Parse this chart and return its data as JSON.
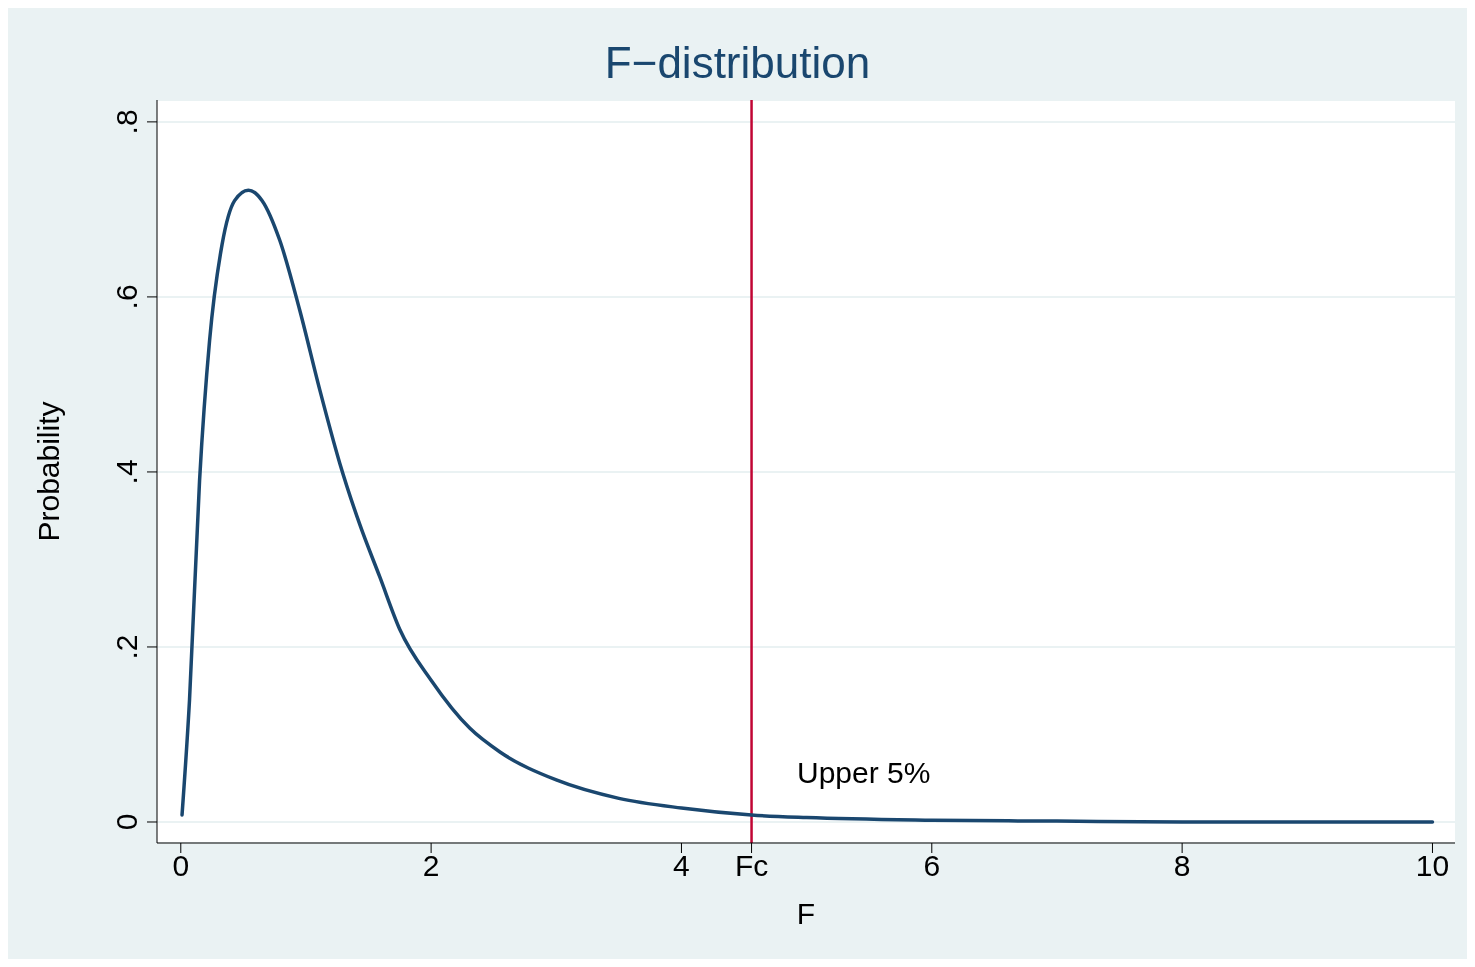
{
  "chart_data": {
    "type": "line",
    "title": "F−distribution",
    "xlabel": "F",
    "ylabel": "Probability",
    "series": [
      {
        "color": "#1a476f",
        "x": [
          0.01,
          0.07,
          0.15,
          0.23,
          0.33,
          0.43,
          0.54,
          0.65,
          0.79,
          0.95,
          1.11,
          1.27,
          1.43,
          1.59,
          1.75,
          2.0,
          2.31,
          2.55,
          3.0,
          3.5,
          4.0,
          4.56,
          5.0,
          6.0,
          7.0,
          8.0,
          9.0,
          10.0
        ],
        "values": [
          0.008,
          0.14,
          0.39,
          0.55,
          0.66,
          0.71,
          0.722,
          0.71,
          0.665,
          0.585,
          0.494,
          0.41,
          0.34,
          0.28,
          0.22,
          0.162,
          0.107,
          0.08,
          0.048,
          0.027,
          0.016,
          0.008,
          0.005,
          0.002,
          0.001,
          0,
          0,
          0
        ]
      }
    ],
    "xlim": [
      -0.19,
      10.18
    ],
    "ylim": [
      -0.024,
      0.825
    ],
    "xticks": [
      0,
      2,
      4,
      {
        "value": 4.56,
        "label": "Fc"
      },
      6,
      8,
      10
    ],
    "yticks": [
      {
        "value": 0,
        "label": "0"
      },
      {
        "value": 0.2,
        "label": ".2"
      },
      {
        "value": 0.4,
        "label": ".4"
      },
      {
        "value": 0.6,
        "label": ".6"
      },
      {
        "value": 0.8,
        "label": ".8"
      }
    ],
    "grid": "y",
    "marker": "none",
    "line_style": "solid",
    "legend": false,
    "ref_lines": [
      {
        "axis": "x",
        "value": 4.56,
        "color": "#c10534"
      }
    ],
    "annotations": [
      "Upper 5%"
    ]
  }
}
